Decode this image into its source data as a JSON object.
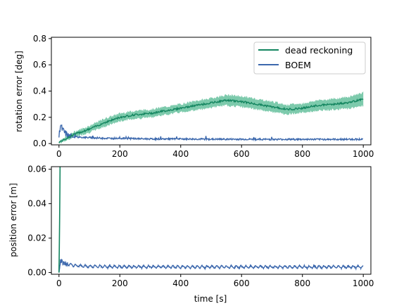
{
  "colors": {
    "dead_reckoning_line": "#13855f",
    "dead_reckoning_band": "#6fc4a3",
    "boem_line": "#3c68ad",
    "boem_band": "#8aa9d6",
    "axes": "#000000",
    "background": "#ffffff"
  },
  "chart_data": [
    {
      "type": "line",
      "title": "",
      "xlabel": "",
      "ylabel": "rotation error [deg]",
      "xlim": [
        -25,
        1025
      ],
      "ylim": [
        -0.01,
        0.81
      ],
      "xticks": [
        "0",
        "200",
        "400",
        "600",
        "800",
        "1000"
      ],
      "yticks": [
        "0.0",
        "0.2",
        "0.4",
        "0.6",
        "0.8"
      ],
      "grid": false,
      "legend_position": "top-right",
      "legend": [
        "dead reckoning",
        "BOEM"
      ],
      "series": [
        {
          "name": "dead reckoning",
          "color": "#13855f",
          "band_color": "#6fc4a3",
          "x": [
            0,
            50,
            100,
            150,
            200,
            250,
            300,
            350,
            400,
            450,
            500,
            550,
            600,
            650,
            700,
            750,
            800,
            850,
            900,
            950,
            1000
          ],
          "y": [
            0.01,
            0.07,
            0.11,
            0.16,
            0.2,
            0.22,
            0.23,
            0.25,
            0.27,
            0.29,
            0.31,
            0.33,
            0.32,
            0.3,
            0.28,
            0.26,
            0.27,
            0.29,
            0.3,
            0.31,
            0.34
          ],
          "band_half_width": [
            0.01,
            0.02,
            0.025,
            0.03,
            0.03,
            0.03,
            0.03,
            0.03,
            0.03,
            0.035,
            0.035,
            0.04,
            0.04,
            0.04,
            0.04,
            0.035,
            0.035,
            0.04,
            0.04,
            0.045,
            0.05
          ]
        },
        {
          "name": "BOEM",
          "color": "#3c68ad",
          "x": [
            0,
            5,
            10,
            20,
            30,
            50,
            100,
            150,
            200,
            300,
            400,
            500,
            600,
            700,
            800,
            900,
            1000
          ],
          "y": [
            0.05,
            0.15,
            0.11,
            0.08,
            0.06,
            0.05,
            0.045,
            0.04,
            0.04,
            0.035,
            0.035,
            0.033,
            0.033,
            0.032,
            0.032,
            0.032,
            0.033
          ]
        }
      ]
    },
    {
      "type": "line",
      "title": "",
      "xlabel": "time [s]",
      "ylabel": "position error [m]",
      "xlim": [
        -25,
        1025
      ],
      "ylim": [
        -0.001,
        0.0615
      ],
      "xticks": [
        "0",
        "200",
        "400",
        "600",
        "800",
        "1000"
      ],
      "yticks": [
        "0.00",
        "0.02",
        "0.04",
        "0.06"
      ],
      "grid": false,
      "series": [
        {
          "name": "dead reckoning",
          "color": "#13855f",
          "x": [
            0,
            1,
            2,
            3,
            4
          ],
          "y": [
            0.0,
            0.012,
            0.03,
            0.048,
            0.07
          ]
        },
        {
          "name": "BOEM",
          "color": "#3c68ad",
          "x": [
            0,
            5,
            10,
            20,
            50,
            100,
            200,
            400,
            600,
            800,
            1000
          ],
          "y": [
            0.0,
            0.006,
            0.007,
            0.005,
            0.004,
            0.0035,
            0.0033,
            0.0032,
            0.0032,
            0.0032,
            0.0032
          ],
          "oscillation_amplitude": 0.0012,
          "oscillation_period_s": 16
        }
      ]
    }
  ]
}
